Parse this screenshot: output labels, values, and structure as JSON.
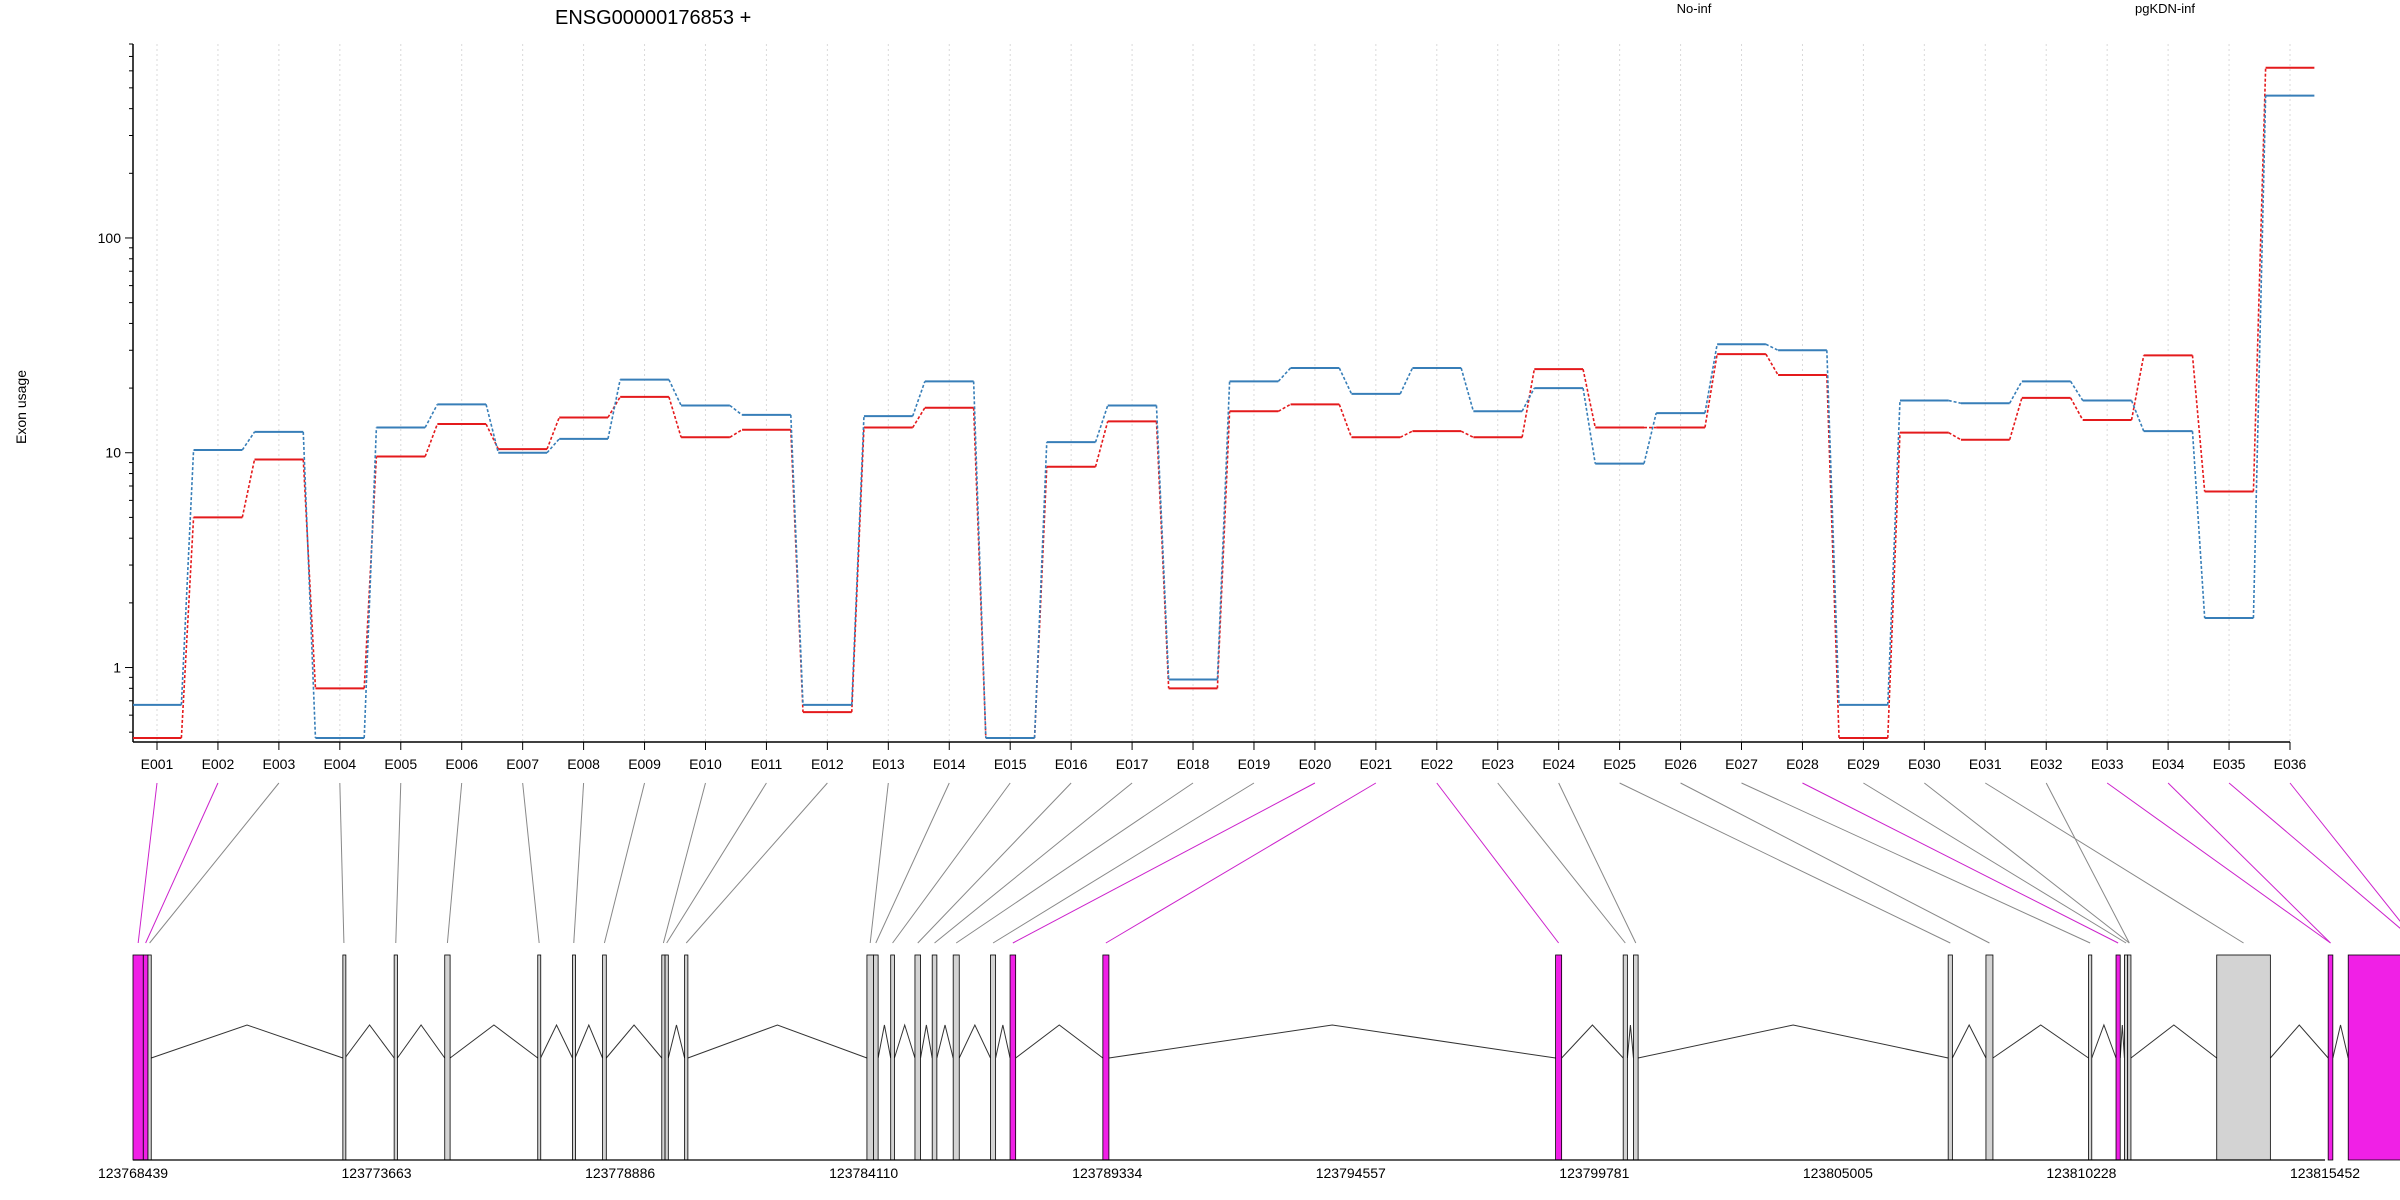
{
  "chart_data": {
    "type": "line",
    "title": "ENSG00000176853 +",
    "ylabel": "Exon usage",
    "xlabel": "",
    "y_scale": "log",
    "ylim": [
      0.45,
      800
    ],
    "y_ticks": [
      "1",
      "10",
      "100"
    ],
    "grid": "vertical dotted at exon centers",
    "legend_position": "top-right",
    "categories": [
      "E001",
      "E002",
      "E003",
      "E004",
      "E005",
      "E006",
      "E007",
      "E008",
      "E009",
      "E010",
      "E011",
      "E012",
      "E013",
      "E014",
      "E015",
      "E016",
      "E017",
      "E018",
      "E019",
      "E020",
      "E021",
      "E022",
      "E023",
      "E024",
      "E025",
      "E026",
      "E027",
      "E028",
      "E029",
      "E030",
      "E031",
      "E032",
      "E033",
      "E034",
      "E035",
      "E036"
    ],
    "series": [
      {
        "name": "No-inf",
        "color": "#e41a1c",
        "values": [
          0.47,
          5.0,
          9.3,
          0.8,
          9.6,
          13.6,
          10.4,
          14.6,
          18.2,
          11.8,
          12.8,
          0.62,
          13.1,
          16.2,
          0.47,
          8.6,
          14.0,
          0.8,
          15.6,
          16.8,
          11.8,
          12.6,
          11.8,
          24.5,
          13.1,
          13.1,
          28.8,
          23.0,
          0.47,
          12.4,
          11.5,
          18.0,
          14.2,
          28.4,
          6.6,
          620
        ]
      },
      {
        "name": "pgKDN-inf",
        "color": "#377eb8",
        "values": [
          0.67,
          10.3,
          12.5,
          0.47,
          13.1,
          16.8,
          10.0,
          11.6,
          21.9,
          16.6,
          15.0,
          0.67,
          14.8,
          21.5,
          0.47,
          11.2,
          16.6,
          0.88,
          21.5,
          24.8,
          18.8,
          24.8,
          15.6,
          20.0,
          8.9,
          15.3,
          32.0,
          30.0,
          0.67,
          17.5,
          17.0,
          21.5,
          17.5,
          12.6,
          1.7,
          460
        ]
      }
    ],
    "highlighted_exons": [
      "E001",
      "E002",
      "E020",
      "E021",
      "E022",
      "E028",
      "E033",
      "E034",
      "E035",
      "E036"
    ],
    "gene_axis_labels": [
      "123768439",
      "123773663",
      "123778886",
      "123784110",
      "123789334",
      "123794557",
      "123799781",
      "123805005",
      "123810228",
      "123815452"
    ],
    "gene_axis_range": [
      123768439,
      123815452
    ],
    "exons": [
      [
        123768439,
        123768660
      ],
      [
        123768660,
        123768760
      ],
      [
        123768760,
        123768830
      ],
      [
        123772940,
        123772985
      ],
      [
        123774040,
        123774110
      ],
      [
        123775125,
        123775240
      ],
      [
        123777120,
        123777180
      ],
      [
        123777865,
        123777920
      ],
      [
        123778510,
        123778590
      ],
      [
        123779780,
        123779850
      ],
      [
        123779850,
        123779920
      ],
      [
        123780270,
        123780340
      ],
      [
        123784180,
        123784320
      ],
      [
        123784320,
        123784420
      ],
      [
        123784690,
        123784770
      ],
      [
        123785210,
        123785330
      ],
      [
        123785580,
        123785680
      ],
      [
        123786030,
        123786160
      ],
      [
        123786830,
        123786940
      ],
      [
        123787250,
        123787370
      ],
      [
        123789240,
        123789370
      ],
      [
        123798950,
        123799080
      ],
      [
        123800400,
        123800490
      ],
      [
        123800620,
        123800720
      ],
      [
        123807370,
        123807460
      ],
      [
        123808180,
        123808330
      ],
      [
        123810380,
        123810450
      ],
      [
        123810970,
        123811060
      ],
      [
        123811150,
        123811220
      ],
      [
        123811220,
        123811290
      ],
      [
        123813130,
        123814280
      ],
      [
        123815520,
        123815620
      ],
      [
        123815950,
        123818920
      ]
    ],
    "exon_assignment": [
      0,
      1,
      2,
      3,
      4,
      5,
      6,
      7,
      8,
      9,
      10,
      11,
      12,
      13,
      14,
      15,
      16,
      17,
      18,
      19,
      20,
      21,
      22,
      23,
      24,
      25,
      26,
      27,
      28,
      29,
      30,
      29,
      31,
      31,
      32,
      32
    ]
  }
}
